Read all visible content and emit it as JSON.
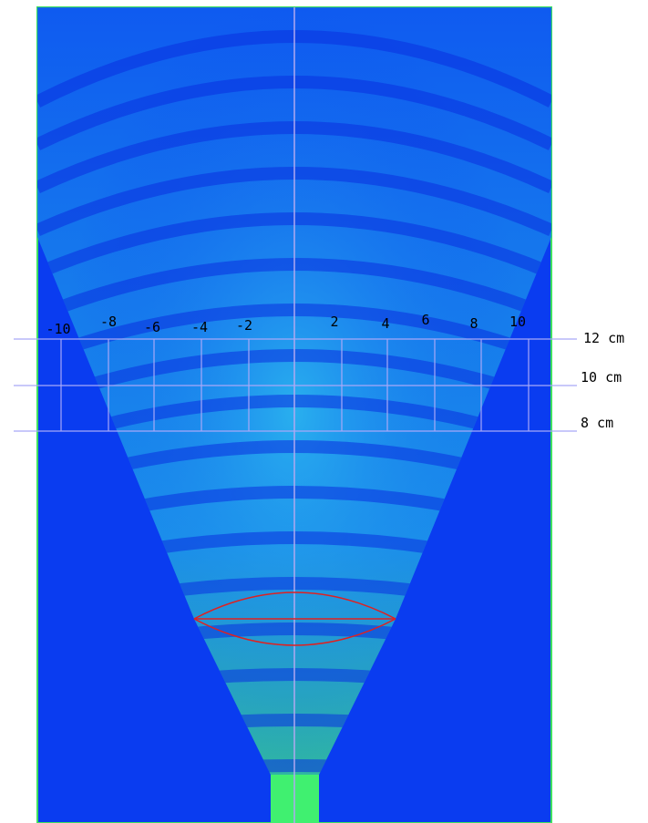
{
  "x_labels": [
    "-10",
    "-8",
    "-6",
    "-4",
    "-2",
    "2",
    "4",
    "6",
    "8",
    "10"
  ],
  "y_labels": [
    "12 cm",
    "10 cm",
    "8 cm"
  ]
}
